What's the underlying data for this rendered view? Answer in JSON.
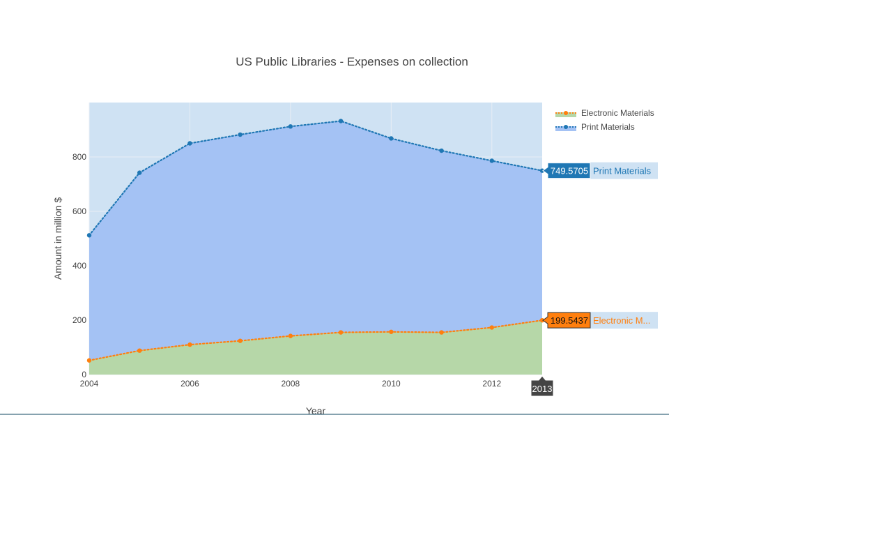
{
  "chart_data": {
    "type": "area",
    "title": "US Public Libraries - Expenses on collection",
    "xlabel": "Year",
    "ylabel": "Amount in million $",
    "x": [
      2004,
      2005,
      2006,
      2007,
      2008,
      2009,
      2010,
      2011,
      2012,
      2013
    ],
    "xlim": [
      2004,
      2013
    ],
    "ylim": [
      0,
      1000
    ],
    "x_ticks": [
      "2004",
      "2006",
      "2008",
      "2010",
      "2012"
    ],
    "y_ticks": [
      "0",
      "200",
      "400",
      "600",
      "800"
    ],
    "grid": true,
    "legend_position": "top-right",
    "series": [
      {
        "name": "Electronic Materials",
        "values": [
          52,
          88,
          110,
          124,
          142,
          155,
          157,
          155,
          173,
          199.5437
        ],
        "line_color": "#ff7f0e",
        "fill_color": "#b6d7a8"
      },
      {
        "name": "Print Materials",
        "values": [
          512,
          742,
          850,
          882,
          912,
          932,
          868,
          823,
          786,
          749.5705
        ],
        "line_color": "#1f77b4",
        "fill_color": "#a4c2f4"
      }
    ],
    "hover": {
      "x_label": "2013",
      "labels": [
        {
          "value": "749.5705",
          "name": "Print Materials",
          "color": "#1f77b4"
        },
        {
          "value": "199.5437",
          "name": "Electronic M...",
          "color": "#ff7f0e"
        }
      ]
    }
  }
}
